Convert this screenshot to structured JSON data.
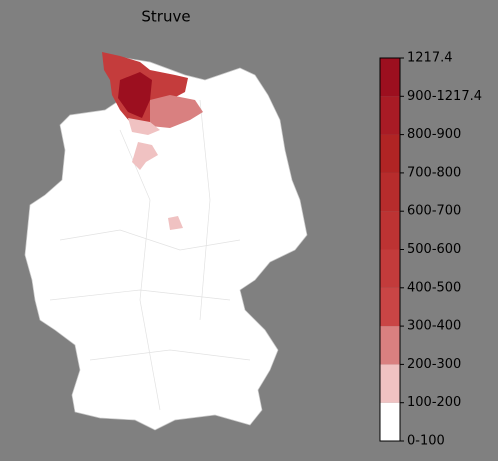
{
  "title": "Struve",
  "colorbar": {
    "labels": [
      "0-100",
      "100-200",
      "200-300",
      "300-400",
      "400-500",
      "500-600",
      "600-700",
      "700-800",
      "800-900",
      "900-1217.4",
      "1217.4"
    ],
    "colors": [
      "#ffffff",
      "#f0c2c2",
      "#d98080",
      "#c94545",
      "#c33b3b",
      "#bd3333",
      "#b72c2c",
      "#b02424",
      "#a81b25",
      "#9c0f1f"
    ]
  }
}
